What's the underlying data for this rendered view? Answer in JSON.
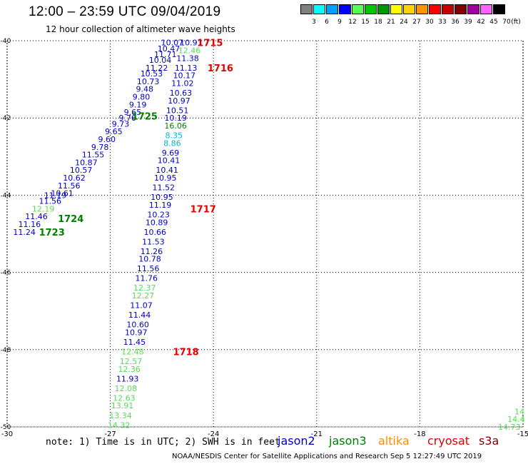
{
  "header": {
    "title": "12:00 – 23:59 UTC 09/04/2019",
    "subtitle": "12 hour collection of altimeter wave heights"
  },
  "colorbar": {
    "swatches": [
      {
        "label": "3",
        "color": "#808080"
      },
      {
        "label": "6",
        "color": "#00ffff"
      },
      {
        "label": "9",
        "color": "#00a0ff"
      },
      {
        "label": "12",
        "color": "#0000ff"
      },
      {
        "label": "15",
        "color": "#55ff55"
      },
      {
        "label": "18",
        "color": "#00c800"
      },
      {
        "label": "21",
        "color": "#009600"
      },
      {
        "label": "24",
        "color": "#ffff00"
      },
      {
        "label": "27",
        "color": "#ffd200"
      },
      {
        "label": "30",
        "color": "#ff9600"
      },
      {
        "label": "33",
        "color": "#ff0000"
      },
      {
        "label": "36",
        "color": "#c80000"
      },
      {
        "label": "39",
        "color": "#800000"
      },
      {
        "label": "42",
        "color": "#a000a0"
      },
      {
        "label": "45",
        "color": "#ff64ff"
      },
      {
        "label": "70",
        "color": "#000000"
      }
    ],
    "unit": "(ft)"
  },
  "map": {
    "lon_range": [
      -30,
      -15
    ],
    "lat_range": [
      -50,
      -40
    ],
    "lon_ticks": [
      "-30",
      "-27",
      "-24",
      "-21",
      "-18",
      "-15"
    ],
    "lat_ticks": [
      "-40",
      "-42",
      "-44",
      "-46",
      "-48",
      "-50"
    ],
    "grid": "dotted",
    "colors": {
      "jason2": "#0000c8",
      "jason3": "#008000",
      "light_green": "#55dd55",
      "cyan": "#00b4dc",
      "red": "#e00000"
    },
    "track_a": [
      {
        "lon": -25.2,
        "lat": -40.05,
        "v": "10.07",
        "c": "jason2"
      },
      {
        "lon": -25.3,
        "lat": -40.2,
        "v": "10.47",
        "c": "jason2"
      },
      {
        "lon": -25.4,
        "lat": -40.35,
        "v": "11.71",
        "c": "jason2"
      },
      {
        "lon": -25.55,
        "lat": -40.5,
        "v": "10.04",
        "c": "jason2"
      },
      {
        "lon": -25.65,
        "lat": -40.7,
        "v": "11.22",
        "c": "jason2"
      },
      {
        "lon": -25.8,
        "lat": -40.85,
        "v": "10.53",
        "c": "jason2"
      },
      {
        "lon": -25.9,
        "lat": -41.05,
        "v": "10.73",
        "c": "jason2"
      },
      {
        "lon": -26.0,
        "lat": -41.25,
        "v": "9.48",
        "c": "jason2"
      },
      {
        "lon": -26.1,
        "lat": -41.45,
        "v": "9.80",
        "c": "jason2"
      },
      {
        "lon": -26.2,
        "lat": -41.65,
        "v": "9.19",
        "c": "jason2"
      },
      {
        "lon": -26.35,
        "lat": -41.85,
        "v": "9.65",
        "c": "jason2"
      },
      {
        "lon": -26.5,
        "lat": -42.0,
        "v": "9.76",
        "c": "jason2"
      },
      {
        "lon": -26.7,
        "lat": -42.15,
        "v": "9.73",
        "c": "jason2"
      },
      {
        "lon": -26.9,
        "lat": -42.35,
        "v": "9.65",
        "c": "jason2"
      },
      {
        "lon": -27.1,
        "lat": -42.55,
        "v": "9.60",
        "c": "jason2"
      },
      {
        "lon": -27.3,
        "lat": -42.75,
        "v": "9.78",
        "c": "jason2"
      },
      {
        "lon": -27.5,
        "lat": -42.95,
        "v": "11.55",
        "c": "jason2"
      },
      {
        "lon": -27.7,
        "lat": -43.15,
        "v": "10.87",
        "c": "jason2"
      },
      {
        "lon": -27.85,
        "lat": -43.35,
        "v": "10.57",
        "c": "jason2"
      },
      {
        "lon": -28.05,
        "lat": -43.55,
        "v": "10.62",
        "c": "jason2"
      },
      {
        "lon": -28.2,
        "lat": -43.75,
        "v": "11.56",
        "c": "jason2"
      },
      {
        "lon": -28.4,
        "lat": -43.95,
        "v": "10.61",
        "c": "jason2"
      },
      {
        "lon": -28.6,
        "lat": -44.0,
        "v": "11.19",
        "c": "jason2"
      },
      {
        "lon": -28.75,
        "lat": -44.15,
        "v": "11.56",
        "c": "jason2"
      },
      {
        "lon": -28.95,
        "lat": -44.35,
        "v": "12.19",
        "c": "light_green"
      },
      {
        "lon": -29.15,
        "lat": -44.55,
        "v": "11.46",
        "c": "jason2"
      },
      {
        "lon": -29.35,
        "lat": -44.75,
        "v": "11.16",
        "c": "jason2"
      },
      {
        "lon": -29.5,
        "lat": -44.95,
        "v": "11.24",
        "c": "jason2"
      }
    ],
    "track_b": [
      {
        "lon": -24.65,
        "lat": -40.05,
        "v": "10.91",
        "c": "jason2"
      },
      {
        "lon": -24.7,
        "lat": -40.25,
        "v": "12.46",
        "c": "light_green"
      },
      {
        "lon": -24.75,
        "lat": -40.45,
        "v": "11.38",
        "c": "jason2"
      },
      {
        "lon": -24.8,
        "lat": -40.7,
        "v": "11.13",
        "c": "jason2"
      },
      {
        "lon": -24.85,
        "lat": -40.9,
        "v": "10.17",
        "c": "jason2"
      },
      {
        "lon": -24.9,
        "lat": -41.1,
        "v": "11.02",
        "c": "jason2"
      },
      {
        "lon": -24.95,
        "lat": -41.35,
        "v": "10.63",
        "c": "jason2"
      },
      {
        "lon": -25.0,
        "lat": -41.55,
        "v": "10.97",
        "c": "jason2"
      },
      {
        "lon": -25.05,
        "lat": -41.8,
        "v": "10.51",
        "c": "jason2"
      },
      {
        "lon": -25.1,
        "lat": -42.0,
        "v": "10.19",
        "c": "jason2"
      },
      {
        "lon": -25.1,
        "lat": -42.2,
        "v": "16.06",
        "c": "jason3"
      },
      {
        "lon": -25.15,
        "lat": -42.45,
        "v": "8.35",
        "c": "cyan"
      },
      {
        "lon": -25.2,
        "lat": -42.65,
        "v": "8.86",
        "c": "cyan"
      },
      {
        "lon": -25.25,
        "lat": -42.9,
        "v": "9.69",
        "c": "jason2"
      },
      {
        "lon": -25.3,
        "lat": -43.1,
        "v": "10.41",
        "c": "jason2"
      },
      {
        "lon": -25.35,
        "lat": -43.35,
        "v": "10.41",
        "c": "jason2"
      },
      {
        "lon": -25.4,
        "lat": -43.55,
        "v": "10.95",
        "c": "jason2"
      },
      {
        "lon": -25.45,
        "lat": -43.8,
        "v": "11.52",
        "c": "jason2"
      },
      {
        "lon": -25.5,
        "lat": -44.05,
        "v": "10.95",
        "c": "jason2"
      },
      {
        "lon": -25.55,
        "lat": -44.25,
        "v": "11.19",
        "c": "jason2"
      },
      {
        "lon": -25.6,
        "lat": -44.5,
        "v": "10.23",
        "c": "jason2"
      },
      {
        "lon": -25.65,
        "lat": -44.7,
        "v": "10.89",
        "c": "jason2"
      },
      {
        "lon": -25.7,
        "lat": -44.95,
        "v": "10.66",
        "c": "jason2"
      },
      {
        "lon": -25.75,
        "lat": -45.2,
        "v": "11.53",
        "c": "jason2"
      },
      {
        "lon": -25.8,
        "lat": -45.45,
        "v": "11.26",
        "c": "jason2"
      },
      {
        "lon": -25.85,
        "lat": -45.65,
        "v": "10.78",
        "c": "jason2"
      },
      {
        "lon": -25.9,
        "lat": -45.9,
        "v": "11.56",
        "c": "jason2"
      },
      {
        "lon": -25.95,
        "lat": -46.15,
        "v": "11.76",
        "c": "jason2"
      },
      {
        "lon": -26.0,
        "lat": -46.4,
        "v": "12.37",
        "c": "light_green"
      },
      {
        "lon": -26.05,
        "lat": -46.6,
        "v": "12.27",
        "c": "light_green"
      },
      {
        "lon": -26.1,
        "lat": -46.85,
        "v": "11.07",
        "c": "jason2"
      },
      {
        "lon": -26.15,
        "lat": -47.1,
        "v": "11.44",
        "c": "jason2"
      },
      {
        "lon": -26.2,
        "lat": -47.35,
        "v": "10.60",
        "c": "jason2"
      },
      {
        "lon": -26.25,
        "lat": -47.55,
        "v": "10.97",
        "c": "jason2"
      },
      {
        "lon": -26.3,
        "lat": -47.8,
        "v": "11.45",
        "c": "jason2"
      },
      {
        "lon": -26.35,
        "lat": -48.05,
        "v": "12.48",
        "c": "light_green"
      },
      {
        "lon": -26.4,
        "lat": -48.3,
        "v": "12.57",
        "c": "light_green"
      },
      {
        "lon": -26.45,
        "lat": -48.5,
        "v": "12.36",
        "c": "light_green"
      },
      {
        "lon": -26.5,
        "lat": -48.75,
        "v": "11.93",
        "c": "jason2"
      },
      {
        "lon": -26.55,
        "lat": -49.0,
        "v": "12.08",
        "c": "light_green"
      },
      {
        "lon": -26.6,
        "lat": -49.25,
        "v": "12.63",
        "c": "light_green"
      },
      {
        "lon": -26.65,
        "lat": -49.45,
        "v": "13.91",
        "c": "light_green"
      },
      {
        "lon": -26.7,
        "lat": -49.7,
        "v": "13.34",
        "c": "light_green"
      },
      {
        "lon": -26.75,
        "lat": -49.95,
        "v": "14.32",
        "c": "light_green"
      }
    ],
    "track_c": [
      {
        "lon": -15.1,
        "lat": -49.6,
        "v": "14",
        "c": "light_green"
      },
      {
        "lon": -15.2,
        "lat": -49.8,
        "v": "14.4",
        "c": "light_green"
      },
      {
        "lon": -15.4,
        "lat": -50.0,
        "v": "14.73",
        "c": "light_green"
      }
    ],
    "time_labels": [
      {
        "lon": -24.1,
        "lat": -40.05,
        "t": "1715",
        "c": "red"
      },
      {
        "lon": -23.8,
        "lat": -40.7,
        "t": "1716",
        "c": "red"
      },
      {
        "lon": -26.0,
        "lat": -41.95,
        "t": "1725",
        "c": "jason3"
      },
      {
        "lon": -24.3,
        "lat": -44.35,
        "t": "1717",
        "c": "red"
      },
      {
        "lon": -28.15,
        "lat": -44.6,
        "t": "1724",
        "c": "jason3"
      },
      {
        "lon": -28.7,
        "lat": -44.95,
        "t": "1723",
        "c": "jason3"
      },
      {
        "lon": -24.8,
        "lat": -48.05,
        "t": "1718",
        "c": "red"
      }
    ]
  },
  "footer": {
    "note": "note: 1) Time is in UTC; 2) SWH is in feet",
    "legend": [
      {
        "label": "jason2",
        "color": "#0000c8"
      },
      {
        "label": "jason3",
        "color": "#008000"
      },
      {
        "label": "altika",
        "color": "#ff8c00"
      },
      {
        "label": "cryosat",
        "color": "#e00000"
      },
      {
        "label": "s3a",
        "color": "#800000"
      }
    ],
    "credit": "NOAA/NESDIS Center for Satellite Applications and Research    Sep  5 12:27:49 UTC 2019"
  }
}
